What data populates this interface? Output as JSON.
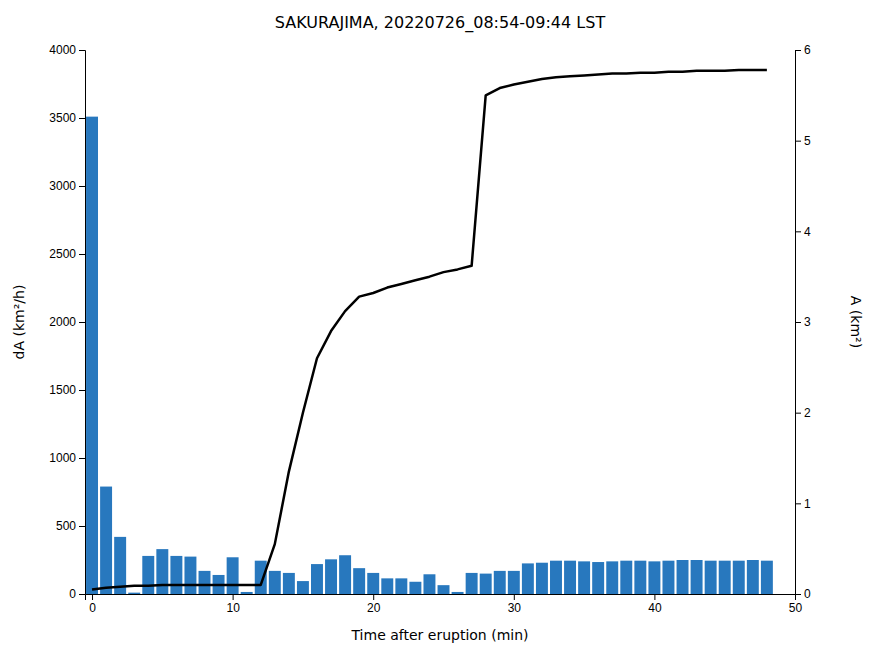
{
  "chart_data": {
    "type": "bar",
    "title": "SAKURAJIMA, 20220726_08:54-09:44 LST",
    "x_label": "Time after eruption (min)",
    "y_label": "dA (km²/h)",
    "y2_label": "A (km²)",
    "x": [
      0,
      1,
      2,
      3,
      4,
      5,
      6,
      7,
      8,
      9,
      10,
      11,
      12,
      13,
      14,
      15,
      16,
      17,
      18,
      19,
      20,
      21,
      22,
      23,
      24,
      25,
      26,
      27,
      28,
      29,
      30,
      31,
      32,
      33,
      34,
      35,
      36,
      37,
      38,
      39,
      40,
      41,
      42,
      43,
      44,
      45,
      46,
      47,
      48
    ],
    "xlim": [
      -0.5,
      50
    ],
    "xticks": [
      0,
      10,
      20,
      30,
      40,
      50
    ],
    "ylim": [
      0,
      4000
    ],
    "yticks": [
      0,
      500,
      1000,
      1500,
      2000,
      2500,
      3000,
      3500,
      4000
    ],
    "y2lim": [
      0,
      6
    ],
    "y2ticks": [
      0,
      1,
      2,
      3,
      4,
      5,
      6
    ],
    "grid": false,
    "series": [
      {
        "type": "bar",
        "color": "#2878BE",
        "values": [
          3510,
          790,
          420,
          10,
          280,
          330,
          280,
          275,
          170,
          140,
          270,
          15,
          245,
          170,
          155,
          95,
          220,
          255,
          285,
          190,
          155,
          115,
          115,
          90,
          145,
          65,
          15,
          155,
          150,
          170,
          170,
          225,
          230,
          245,
          245,
          240,
          235,
          240,
          245,
          245,
          240,
          245,
          250,
          250,
          245,
          245,
          245,
          250,
          245
        ]
      },
      {
        "type": "line",
        "color": "#000000",
        "axis": "y2",
        "values": [
          0.05,
          0.07,
          0.08,
          0.09,
          0.09,
          0.1,
          0.1,
          0.1,
          0.1,
          0.1,
          0.1,
          0.1,
          0.1,
          0.55,
          1.35,
          2.0,
          2.6,
          2.9,
          3.12,
          3.28,
          3.32,
          3.38,
          3.42,
          3.46,
          3.5,
          3.55,
          3.58,
          3.62,
          5.5,
          5.58,
          5.62,
          5.65,
          5.68,
          5.7,
          5.71,
          5.72,
          5.73,
          5.74,
          5.74,
          5.75,
          5.75,
          5.76,
          5.76,
          5.77,
          5.77,
          5.77,
          5.78,
          5.78,
          5.78
        ]
      }
    ]
  }
}
